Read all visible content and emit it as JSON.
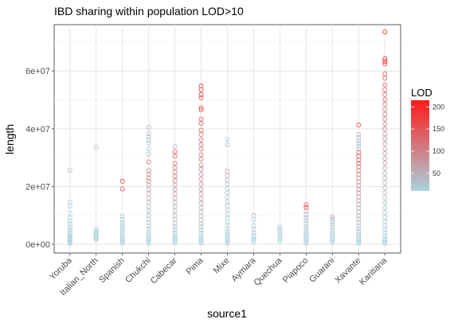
{
  "chart_data": {
    "type": "scatter",
    "title": "IBD sharing within population LOD>10",
    "xlabel": "source1",
    "ylabel": "length",
    "categories": [
      "Yoruba",
      "Italian_North",
      "Spanish",
      "Chukchi",
      "Cabecar",
      "Pima",
      "Mixe",
      "Aymara",
      "Quechua",
      "Piapoco",
      "Guarani",
      "Xavante",
      "Karitiana"
    ],
    "y_ticks": [
      {
        "value": 0,
        "label": "0e+00"
      },
      {
        "value": 20000000,
        "label": "2e+07"
      },
      {
        "value": 40000000,
        "label": "4e+07"
      },
      {
        "value": 60000000,
        "label": "6e+07"
      }
    ],
    "ylim": [
      -3000000,
      76000000
    ],
    "grid": true,
    "color_scale": {
      "title": "LOD",
      "low_color": "#a8d2de",
      "high_color": "#ff1a1a",
      "min": 10,
      "max": 215,
      "ticks": [
        50,
        100,
        150,
        200
      ],
      "legend_position": "right"
    },
    "series": [
      {
        "category": "Yoruba",
        "points": [
          [
            25700000,
            35
          ],
          [
            14500000,
            22
          ],
          [
            13200000,
            18
          ],
          [
            10800000,
            16
          ],
          [
            9200000,
            15
          ],
          [
            8100000,
            14
          ],
          [
            7000000,
            13
          ],
          [
            6000000,
            12
          ],
          [
            5100000,
            12
          ],
          [
            4300000,
            11
          ],
          [
            3700000,
            11
          ],
          [
            3100000,
            11
          ],
          [
            2600000,
            10
          ],
          [
            2100000,
            10
          ],
          [
            1700000,
            10
          ],
          [
            1300000,
            10
          ],
          [
            900000,
            10
          ],
          [
            600000,
            10
          ],
          [
            300000,
            10
          ]
        ]
      },
      {
        "category": "Italian_North",
        "points": [
          [
            33500000,
            30
          ],
          [
            5200000,
            12
          ],
          [
            4600000,
            12
          ],
          [
            4000000,
            11
          ],
          [
            3500000,
            11
          ],
          [
            3000000,
            11
          ],
          [
            2500000,
            10
          ],
          [
            2000000,
            10
          ],
          [
            1600000,
            10
          ]
        ]
      },
      {
        "category": "Spanish",
        "points": [
          [
            21800000,
            180
          ],
          [
            19200000,
            160
          ],
          [
            9800000,
            25
          ],
          [
            8500000,
            20
          ],
          [
            7500000,
            18
          ],
          [
            6500000,
            15
          ],
          [
            5600000,
            13
          ],
          [
            4800000,
            12
          ],
          [
            4000000,
            11
          ],
          [
            3200000,
            11
          ],
          [
            2500000,
            10
          ],
          [
            1900000,
            10
          ],
          [
            1300000,
            10
          ],
          [
            800000,
            10
          ],
          [
            400000,
            10
          ]
        ]
      },
      {
        "category": "Chukchi",
        "points": [
          [
            40500000,
            40
          ],
          [
            38300000,
            35
          ],
          [
            37200000,
            30
          ],
          [
            36000000,
            28
          ],
          [
            35000000,
            25
          ],
          [
            33000000,
            35
          ],
          [
            31200000,
            30
          ],
          [
            28500000,
            120
          ],
          [
            25500000,
            100
          ],
          [
            24200000,
            90
          ],
          [
            23000000,
            80
          ],
          [
            21800000,
            95
          ],
          [
            20500000,
            70
          ],
          [
            19000000,
            60
          ],
          [
            17500000,
            55
          ],
          [
            16000000,
            50
          ],
          [
            14500000,
            45
          ],
          [
            13000000,
            40
          ],
          [
            11500000,
            35
          ],
          [
            10000000,
            30
          ],
          [
            8700000,
            25
          ],
          [
            7500000,
            20
          ],
          [
            6300000,
            18
          ],
          [
            5200000,
            15
          ],
          [
            4200000,
            13
          ],
          [
            3300000,
            12
          ],
          [
            2500000,
            11
          ],
          [
            1800000,
            10
          ],
          [
            1200000,
            10
          ],
          [
            700000,
            10
          ],
          [
            300000,
            10
          ]
        ]
      },
      {
        "category": "Cabecar",
        "points": [
          [
            33800000,
            30
          ],
          [
            32100000,
            150
          ],
          [
            30500000,
            140
          ],
          [
            28000000,
            130
          ],
          [
            26500000,
            110
          ],
          [
            25000000,
            100
          ],
          [
            23500000,
            120
          ],
          [
            22000000,
            90
          ],
          [
            20500000,
            80
          ],
          [
            19000000,
            75
          ],
          [
            17500000,
            70
          ],
          [
            16000000,
            60
          ],
          [
            14500000,
            55
          ],
          [
            13000000,
            50
          ],
          [
            11500000,
            45
          ],
          [
            10000000,
            40
          ],
          [
            8600000,
            35
          ],
          [
            7300000,
            30
          ],
          [
            6100000,
            25
          ],
          [
            5000000,
            20
          ],
          [
            4000000,
            18
          ],
          [
            3100000,
            15
          ],
          [
            2300000,
            12
          ],
          [
            1600000,
            11
          ],
          [
            1000000,
            10
          ],
          [
            500000,
            10
          ]
        ]
      },
      {
        "category": "Pima",
        "points": [
          [
            54800000,
            190
          ],
          [
            53500000,
            185
          ],
          [
            51800000,
            175
          ],
          [
            50700000,
            170
          ],
          [
            47200000,
            165
          ],
          [
            46500000,
            160
          ],
          [
            43300000,
            150
          ],
          [
            41800000,
            145
          ],
          [
            39500000,
            140
          ],
          [
            38000000,
            135
          ],
          [
            36200000,
            130
          ],
          [
            34500000,
            125
          ],
          [
            33000000,
            120
          ],
          [
            31000000,
            115
          ],
          [
            29500000,
            110
          ],
          [
            27500000,
            105
          ],
          [
            26000000,
            100
          ],
          [
            24200000,
            95
          ],
          [
            22500000,
            90
          ],
          [
            20800000,
            85
          ],
          [
            19000000,
            80
          ],
          [
            17400000,
            75
          ],
          [
            15800000,
            70
          ],
          [
            14200000,
            62
          ],
          [
            12700000,
            55
          ],
          [
            11200000,
            48
          ],
          [
            9800000,
            42
          ],
          [
            8500000,
            36
          ],
          [
            7200000,
            30
          ],
          [
            6000000,
            25
          ],
          [
            4900000,
            20
          ],
          [
            3900000,
            16
          ],
          [
            3000000,
            13
          ],
          [
            2200000,
            11
          ],
          [
            1500000,
            10
          ],
          [
            900000,
            10
          ],
          [
            400000,
            10
          ]
        ]
      },
      {
        "category": "Mixe",
        "points": [
          [
            36300000,
            30
          ],
          [
            34500000,
            28
          ],
          [
            25200000,
            60
          ],
          [
            23800000,
            40
          ],
          [
            22300000,
            35
          ],
          [
            20800000,
            32
          ],
          [
            19300000,
            30
          ],
          [
            17800000,
            28
          ],
          [
            16300000,
            25
          ],
          [
            14800000,
            22
          ],
          [
            13300000,
            20
          ],
          [
            11800000,
            18
          ],
          [
            10400000,
            16
          ],
          [
            9000000,
            15
          ],
          [
            7700000,
            14
          ],
          [
            6500000,
            13
          ],
          [
            5400000,
            12
          ],
          [
            4400000,
            11
          ],
          [
            3500000,
            11
          ],
          [
            2700000,
            10
          ],
          [
            2000000,
            10
          ],
          [
            1400000,
            10
          ],
          [
            800000,
            10
          ],
          [
            400000,
            10
          ]
        ]
      },
      {
        "category": "Aymara",
        "points": [
          [
            10000000,
            30
          ],
          [
            8600000,
            25
          ],
          [
            6500000,
            20
          ],
          [
            5200000,
            18
          ],
          [
            4000000,
            15
          ],
          [
            3000000,
            13
          ],
          [
            2200000,
            12
          ],
          [
            1500000,
            11
          ],
          [
            900000,
            10
          ]
        ]
      },
      {
        "category": "Quechua",
        "points": [
          [
            6200000,
            20
          ],
          [
            5300000,
            18
          ],
          [
            4300000,
            16
          ],
          [
            3400000,
            14
          ],
          [
            2500000,
            12
          ],
          [
            1700000,
            11
          ],
          [
            1100000,
            10
          ]
        ]
      },
      {
        "category": "Piapoco",
        "points": [
          [
            13700000,
            170
          ],
          [
            12800000,
            160
          ],
          [
            11500000,
            50
          ],
          [
            10300000,
            40
          ],
          [
            9200000,
            35
          ],
          [
            8200000,
            30
          ],
          [
            7200000,
            25
          ],
          [
            6200000,
            20
          ],
          [
            5300000,
            18
          ],
          [
            4400000,
            15
          ],
          [
            3600000,
            13
          ],
          [
            2800000,
            12
          ],
          [
            2100000,
            11
          ],
          [
            1500000,
            10
          ],
          [
            900000,
            10
          ],
          [
            400000,
            10
          ]
        ]
      },
      {
        "category": "Guarani",
        "points": [
          [
            9600000,
            50
          ],
          [
            8800000,
            40
          ],
          [
            7800000,
            30
          ],
          [
            6800000,
            25
          ],
          [
            5800000,
            20
          ],
          [
            4900000,
            18
          ],
          [
            4000000,
            15
          ],
          [
            3200000,
            13
          ],
          [
            2500000,
            12
          ],
          [
            1800000,
            11
          ],
          [
            1200000,
            10
          ],
          [
            700000,
            10
          ]
        ]
      },
      {
        "category": "Xavante",
        "points": [
          [
            41300000,
            175
          ],
          [
            38000000,
            35
          ],
          [
            37000000,
            32
          ],
          [
            36000000,
            30
          ],
          [
            35000000,
            28
          ],
          [
            34000000,
            26
          ],
          [
            33000000,
            25
          ],
          [
            31800000,
            160
          ],
          [
            30500000,
            150
          ],
          [
            29200000,
            140
          ],
          [
            28000000,
            130
          ],
          [
            26800000,
            120
          ],
          [
            25500000,
            110
          ],
          [
            24200000,
            100
          ],
          [
            22900000,
            95
          ],
          [
            21600000,
            90
          ],
          [
            20300000,
            85
          ],
          [
            19000000,
            80
          ],
          [
            17700000,
            75
          ],
          [
            16400000,
            70
          ],
          [
            15100000,
            65
          ],
          [
            13800000,
            60
          ],
          [
            12500000,
            55
          ],
          [
            11200000,
            50
          ],
          [
            9900000,
            45
          ],
          [
            8700000,
            40
          ],
          [
            7500000,
            35
          ],
          [
            6400000,
            30
          ],
          [
            5400000,
            25
          ],
          [
            4400000,
            20
          ],
          [
            3500000,
            16
          ],
          [
            2700000,
            13
          ],
          [
            2000000,
            11
          ],
          [
            1400000,
            10
          ],
          [
            800000,
            10
          ],
          [
            400000,
            10
          ]
        ]
      },
      {
        "category": "Karitiana",
        "points": [
          [
            73500000,
            215
          ],
          [
            64200000,
            205
          ],
          [
            63300000,
            200
          ],
          [
            62400000,
            195
          ],
          [
            59000000,
            150
          ],
          [
            57500000,
            145
          ],
          [
            55200000,
            140
          ],
          [
            53500000,
            135
          ],
          [
            51800000,
            130
          ],
          [
            50100000,
            125
          ],
          [
            48400000,
            120
          ],
          [
            46700000,
            115
          ],
          [
            45000000,
            110
          ],
          [
            43300000,
            105
          ],
          [
            41600000,
            100
          ],
          [
            39900000,
            95
          ],
          [
            38200000,
            90
          ],
          [
            36500000,
            85
          ],
          [
            34800000,
            80
          ],
          [
            33100000,
            75
          ],
          [
            31400000,
            70
          ],
          [
            29700000,
            65
          ],
          [
            28000000,
            60
          ],
          [
            26300000,
            55
          ],
          [
            24600000,
            50
          ],
          [
            22900000,
            45
          ],
          [
            21200000,
            40
          ],
          [
            19500000,
            35
          ],
          [
            17800000,
            32
          ],
          [
            16100000,
            30
          ],
          [
            14400000,
            28
          ],
          [
            12700000,
            25
          ],
          [
            11000000,
            22
          ],
          [
            9400000,
            20
          ],
          [
            7900000,
            18
          ],
          [
            6500000,
            16
          ],
          [
            5200000,
            14
          ],
          [
            4000000,
            12
          ],
          [
            3000000,
            11
          ],
          [
            2100000,
            10
          ],
          [
            1300000,
            10
          ],
          [
            700000,
            10
          ],
          [
            300000,
            10
          ]
        ]
      }
    ]
  }
}
